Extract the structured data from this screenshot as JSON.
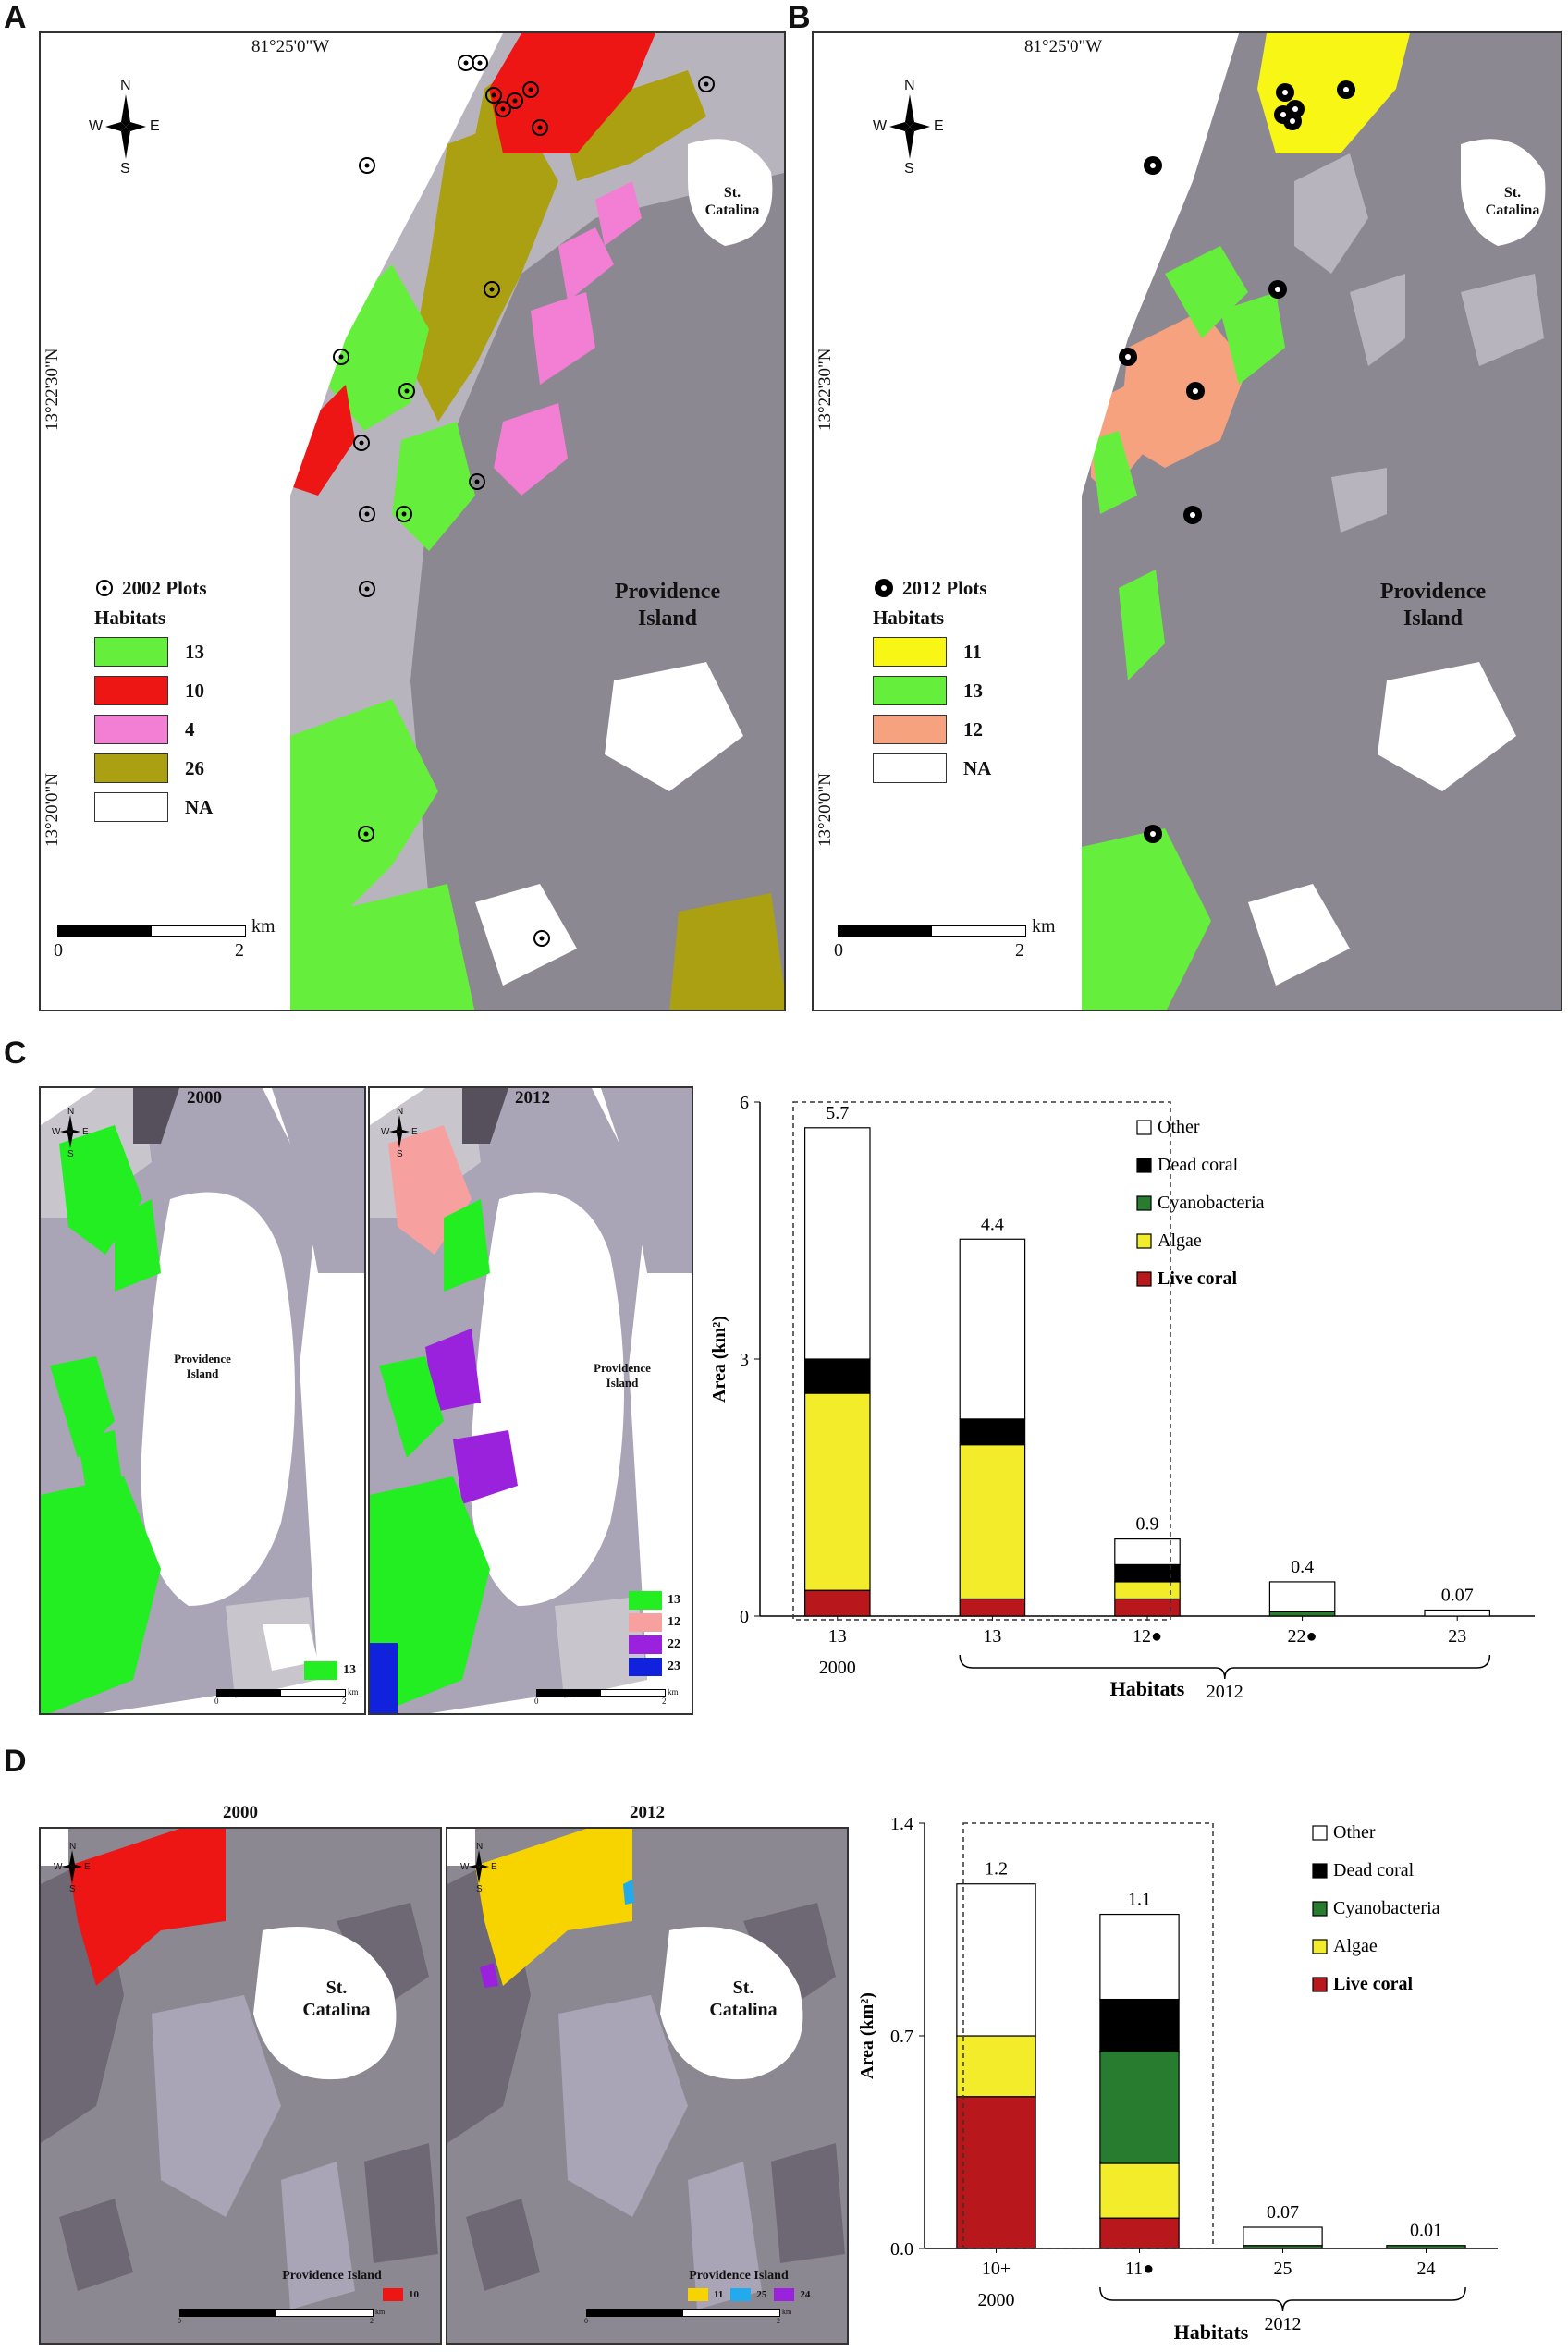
{
  "panels": {
    "a": {
      "label": "A",
      "longitude": "81°25'0\"W",
      "latitudes": [
        "13°22'30\"N",
        "13°20'0\"N"
      ],
      "compass": {
        "n": "N",
        "s": "S",
        "w": "W",
        "e": "E"
      },
      "plots_label": "2002 Plots",
      "habitats_title": "Habitats",
      "habitats": [
        {
          "label": "13",
          "color": "#66ee3c"
        },
        {
          "label": "10",
          "color": "#ee1515"
        },
        {
          "label": "4",
          "color": "#f27fd4"
        },
        {
          "label": "26",
          "color": "#aaa012"
        },
        {
          "label": "NA",
          "color": "#ffffff"
        }
      ],
      "island": "Providence\nIsland",
      "small_island": "St.\nCatalina",
      "scale": {
        "start": "0",
        "end": "2",
        "unit": "km"
      }
    },
    "b": {
      "label": "B",
      "longitude": "81°25'0\"W",
      "latitudes": [
        "13°22'30\"N",
        "13°20'0\"N"
      ],
      "compass": {
        "n": "N",
        "s": "S",
        "w": "W",
        "e": "E"
      },
      "plots_label": "2012 Plots",
      "habitats_title": "Habitats",
      "habitats": [
        {
          "label": "11",
          "color": "#f8f614"
        },
        {
          "label": "13",
          "color": "#66ee3c"
        },
        {
          "label": "12",
          "color": "#f7a27f"
        },
        {
          "label": "NA",
          "color": "#ffffff"
        }
      ],
      "island": "Providence\nIsland",
      "small_island": "St.\nCatalina",
      "scale": {
        "start": "0",
        "end": "2",
        "unit": "km"
      }
    },
    "c": {
      "label": "C",
      "map_left": {
        "title": "2000",
        "island": "Providence\nIsland",
        "legend": [
          {
            "label": "13",
            "color": "#22ee22"
          }
        ]
      },
      "map_right": {
        "title": "2012",
        "island": "Providence\nIsland",
        "legend": [
          {
            "label": "13",
            "color": "#22ee22"
          },
          {
            "label": "12",
            "color": "#f7a0a0"
          },
          {
            "label": "22",
            "color": "#9a22dd"
          },
          {
            "label": "23",
            "color": "#1122dd"
          }
        ]
      },
      "compass": {
        "n": "N",
        "s": "S",
        "w": "W",
        "e": "E"
      },
      "scale": {
        "start": "0",
        "end": "2",
        "unit": "km"
      }
    },
    "d": {
      "label": "D",
      "map_left": {
        "title": "2000",
        "island": "Providence Island",
        "small_island": "St.\nCatalina",
        "legend": [
          {
            "label": "10",
            "color": "#ee1515"
          }
        ]
      },
      "map_right": {
        "title": "2012",
        "island": "Providence Island",
        "small_island": "St.\nCatalina",
        "legend": [
          {
            "label": "11",
            "color": "#f7d400"
          },
          {
            "label": "25",
            "color": "#22aaee"
          },
          {
            "label": "24",
            "color": "#9a22dd"
          }
        ]
      },
      "compass": {
        "n": "N",
        "s": "S",
        "w": "W",
        "e": "E"
      },
      "scale": {
        "start": "0",
        "end": "2",
        "unit": "km"
      }
    }
  },
  "chart_data": [
    {
      "type": "bar",
      "panel": "C",
      "stacked": true,
      "categories": [
        "13",
        "13",
        "12●",
        "22●",
        "23"
      ],
      "groups": [
        {
          "label": "2000",
          "categories": [
            0
          ]
        },
        {
          "label": "2012",
          "categories": [
            1,
            2,
            3,
            4
          ]
        }
      ],
      "series": [
        {
          "name": "Live coral",
          "color": "#b8171b",
          "values": [
            0.3,
            0.2,
            0.2,
            0.0,
            0.0
          ]
        },
        {
          "name": "Algae",
          "color": "#f2ec2a",
          "values": [
            2.3,
            1.8,
            0.2,
            0.0,
            0.0
          ]
        },
        {
          "name": "Cyanobacteria",
          "color": "#277c2f",
          "values": [
            0.0,
            0.0,
            0.0,
            0.05,
            0.0
          ]
        },
        {
          "name": "Dead coral",
          "color": "#000000",
          "values": [
            0.4,
            0.3,
            0.2,
            0.0,
            0.0
          ]
        },
        {
          "name": "Other",
          "color": "#ffffff",
          "values": [
            2.7,
            2.1,
            0.3,
            0.35,
            0.07
          ]
        }
      ],
      "totals": [
        "5.7",
        "4.4",
        "0.9",
        "0.4",
        "0.07"
      ],
      "xlabel": "Habitats",
      "ylabel": "Area (km²)",
      "ylim": [
        0,
        6
      ],
      "yticks": [
        "0",
        "3",
        "6"
      ],
      "legend_order": [
        "Other",
        "Dead coral",
        "Cyanobacteria",
        "Algae",
        "Live coral"
      ]
    },
    {
      "type": "bar",
      "panel": "D",
      "stacked": true,
      "categories": [
        "10+",
        "11●",
        "25",
        "24"
      ],
      "groups": [
        {
          "label": "2000",
          "categories": [
            0
          ]
        },
        {
          "label": "2012",
          "categories": [
            1,
            2,
            3
          ]
        }
      ],
      "series": [
        {
          "name": "Live coral",
          "color": "#b8171b",
          "values": [
            0.5,
            0.1,
            0.0,
            0.0
          ]
        },
        {
          "name": "Algae",
          "color": "#f2ec2a",
          "values": [
            0.2,
            0.18,
            0.0,
            0.0
          ]
        },
        {
          "name": "Cyanobacteria",
          "color": "#277c2f",
          "values": [
            0.0,
            0.37,
            0.01,
            0.01
          ]
        },
        {
          "name": "Dead coral",
          "color": "#000000",
          "values": [
            0.0,
            0.17,
            0.0,
            0.0
          ]
        },
        {
          "name": "Other",
          "color": "#ffffff",
          "values": [
            0.5,
            0.28,
            0.06,
            0.0
          ]
        }
      ],
      "totals": [
        "1.2",
        "1.1",
        "0.07",
        "0.01"
      ],
      "xlabel": "Habitats",
      "ylabel": "Area (km²)",
      "ylim": [
        0,
        1.4
      ],
      "yticks": [
        "0.0",
        "0.7",
        "1.4"
      ],
      "legend_order": [
        "Other",
        "Dead coral",
        "Cyanobacteria",
        "Algae",
        "Live coral"
      ]
    }
  ]
}
